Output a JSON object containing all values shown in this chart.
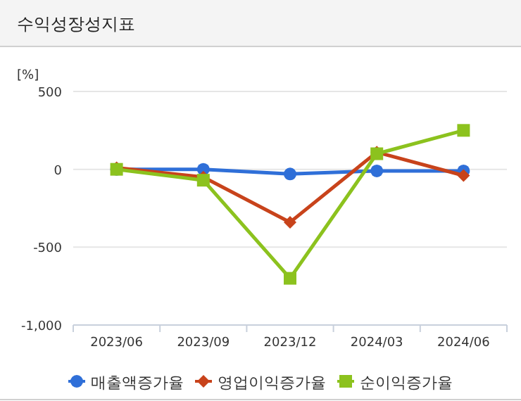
{
  "chart_data": {
    "type": "line",
    "title": "수익성장성지표",
    "ylabel": "[%]",
    "categories": [
      "2023/06",
      "2023/09",
      "2023/12",
      "2024/03",
      "2024/06"
    ],
    "ylim": [
      -1000,
      500
    ],
    "yticks": [
      {
        "value": -1000,
        "label": "-1,000"
      },
      -500,
      0,
      500
    ],
    "grid": "y",
    "legend": "bottom",
    "series": [
      {
        "name": "매출액증가율",
        "color": "#2f6fd8",
        "marker": "circle",
        "values": [
          0,
          0,
          -30,
          -10,
          -10
        ]
      },
      {
        "name": "영업이익증가율",
        "color": "#c8431b",
        "marker": "diamond",
        "values": [
          10,
          -50,
          -340,
          110,
          -40
        ]
      },
      {
        "name": "순이익증가율",
        "color": "#8cc21e",
        "marker": "square",
        "values": [
          0,
          -70,
          -700,
          100,
          250
        ]
      }
    ]
  }
}
